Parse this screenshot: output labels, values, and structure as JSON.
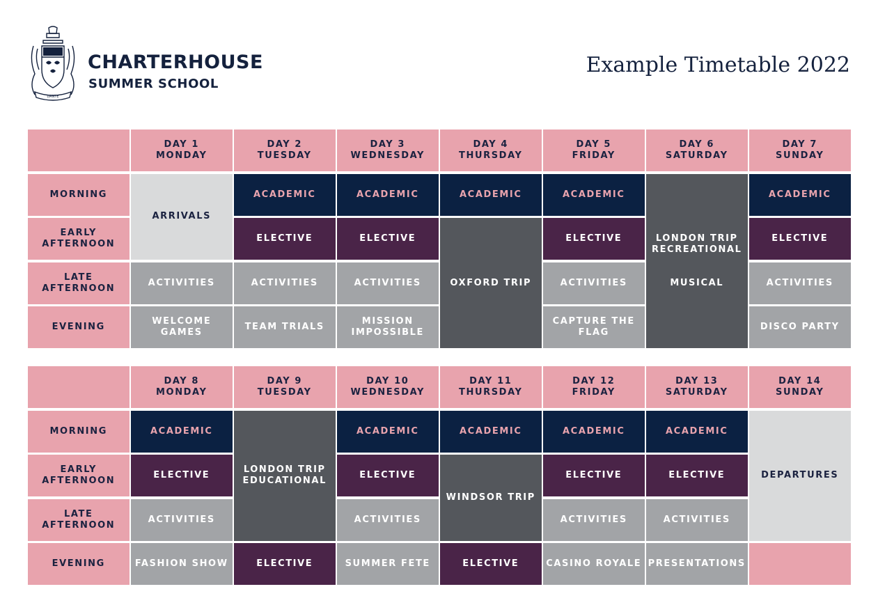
{
  "brand": {
    "name": "CHARTERHOUSE",
    "subtitle": "SUMMER SCHOOL",
    "crest_icon": "school-crest-icon",
    "crest_motto": "DANTE"
  },
  "title": "Example Timetable 2022",
  "colors": {
    "pink": "#e8a3ad",
    "navy": "#0b2142",
    "plum": "#4a2448",
    "grey": "#a2a4a7",
    "dark_grey": "#54575c",
    "light_grey": "#d9dadb"
  },
  "row_labels": {
    "morning": "MORNING",
    "early_afternoon_1": "EARLY",
    "early_afternoon_2": "AFTERNOON",
    "late_afternoon_1": "LATE",
    "late_afternoon_2": "AFTERNOON",
    "evening": "EVENING"
  },
  "week1": {
    "days": [
      {
        "day": "DAY 1",
        "weekday": "MONDAY"
      },
      {
        "day": "DAY 2",
        "weekday": "TUESDAY"
      },
      {
        "day": "DAY 3",
        "weekday": "WEDNESDAY"
      },
      {
        "day": "DAY 4",
        "weekday": "THURSDAY"
      },
      {
        "day": "DAY 5",
        "weekday": "FRIDAY"
      },
      {
        "day": "DAY 6",
        "weekday": "SATURDAY"
      },
      {
        "day": "DAY 7",
        "weekday": "SUNDAY"
      }
    ],
    "events": {
      "d1_arrivals": "ARRIVALS",
      "d1_late": "ACTIVITIES",
      "d1_evening_1": "WELCOME",
      "d1_evening_2": "GAMES",
      "d2_morning": "ACADEMIC",
      "d2_early": "ELECTIVE",
      "d2_late": "ACTIVITIES",
      "d2_evening": "TEAM TRIALS",
      "d3_morning": "ACADEMIC",
      "d3_early": "ELECTIVE",
      "d3_late": "ACTIVITIES",
      "d3_evening_1": "MISSION",
      "d3_evening_2": "IMPOSSIBLE",
      "d4_morning": "ACADEMIC",
      "d4_trip": "OXFORD TRIP",
      "d5_morning": "ACADEMIC",
      "d5_early": "ELECTIVE",
      "d5_late": "ACTIVITIES",
      "d5_evening_1": "CAPTURE THE",
      "d5_evening_2": "FLAG",
      "d6_trip_1": "LONDON TRIP",
      "d6_trip_2": "RECREATIONAL",
      "d6_musical": "MUSICAL",
      "d7_morning": "ACADEMIC",
      "d7_early": "ELECTIVE",
      "d7_late": "ACTIVITIES",
      "d7_evening": "DISCO PARTY"
    }
  },
  "week2": {
    "days": [
      {
        "day": "DAY 8",
        "weekday": "MONDAY"
      },
      {
        "day": "DAY 9",
        "weekday": "TUESDAY"
      },
      {
        "day": "DAY 10",
        "weekday": "WEDNESDAY"
      },
      {
        "day": "DAY 11",
        "weekday": "THURSDAY"
      },
      {
        "day": "DAY 12",
        "weekday": "FRIDAY"
      },
      {
        "day": "DAY 13",
        "weekday": "SATURDAY"
      },
      {
        "day": "DAY 14",
        "weekday": "SUNDAY"
      }
    ],
    "events": {
      "d8_morning": "ACADEMIC",
      "d8_early": "ELECTIVE",
      "d8_late": "ACTIVITIES",
      "d8_evening": "FASHION SHOW",
      "d9_trip_1": "LONDON TRIP",
      "d9_trip_2": "EDUCATIONAL",
      "d9_evening": "ELECTIVE",
      "d10_morning": "ACADEMIC",
      "d10_early": "ELECTIVE",
      "d10_late": "ACTIVITIES",
      "d10_evening": "SUMMER FETE",
      "d11_morning": "ACADEMIC",
      "d11_trip": "WINDSOR TRIP",
      "d11_evening": "ELECTIVE",
      "d12_morning": "ACADEMIC",
      "d12_early": "ELECTIVE",
      "d12_late": "ACTIVITIES",
      "d12_evening": "CASINO ROYALE",
      "d13_morning": "ACADEMIC",
      "d13_early": "ELECTIVE",
      "d13_late": "ACTIVITIES",
      "d13_evening": "PRESENTATIONS",
      "d14_departures": "DEPARTURES"
    }
  }
}
